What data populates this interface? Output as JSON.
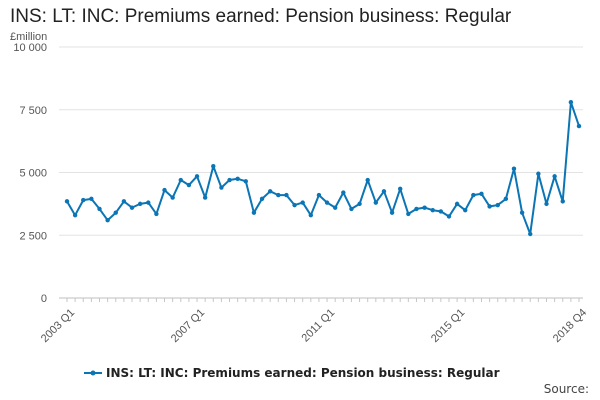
{
  "page": {
    "title": "INS: LT: INC: Premiums earned: Pension business: Regular",
    "source_label": "Source:"
  },
  "chart_data": {
    "type": "line",
    "title": "INS: LT: INC: Premiums earned: Pension business: Regular",
    "ylabel": "£million",
    "xlabel": "",
    "ylim": [
      0,
      10000
    ],
    "y_ticks": [
      {
        "value": 0,
        "label": "0"
      },
      {
        "value": 2500,
        "label": "2 500"
      },
      {
        "value": 5000,
        "label": "5 000"
      },
      {
        "value": 7500,
        "label": "7 500"
      },
      {
        "value": 10000,
        "label": "10 000"
      }
    ],
    "x_tick_labels": [
      {
        "index": 0,
        "label": "2003 Q1"
      },
      {
        "index": 16,
        "label": "2007 Q1"
      },
      {
        "index": 32,
        "label": "2011 Q1"
      },
      {
        "index": 48,
        "label": "2015 Q1"
      },
      {
        "index": 63,
        "label": "2018 Q4"
      }
    ],
    "grid": true,
    "legend_position": "bottom",
    "series": [
      {
        "name": "INS: LT: INC: Premiums earned: Pension business: Regular",
        "color": "#0b75b5",
        "values": [
          3850,
          3300,
          3900,
          3950,
          3550,
          3100,
          3400,
          3850,
          3600,
          3750,
          3800,
          3350,
          4300,
          4000,
          4700,
          4500,
          4850,
          4000,
          5250,
          4400,
          4700,
          4750,
          4650,
          3400,
          3950,
          4250,
          4100,
          4100,
          3700,
          3800,
          3300,
          4100,
          3800,
          3600,
          4200,
          3550,
          3750,
          4700,
          3800,
          4250,
          3400,
          4350,
          3350,
          3550,
          3600,
          3500,
          3450,
          3250,
          3750,
          3500,
          4100,
          4150,
          3650,
          3700,
          3950,
          5150,
          3400,
          2550,
          4950,
          3750,
          4850,
          3850,
          7800,
          6850
        ]
      }
    ]
  }
}
